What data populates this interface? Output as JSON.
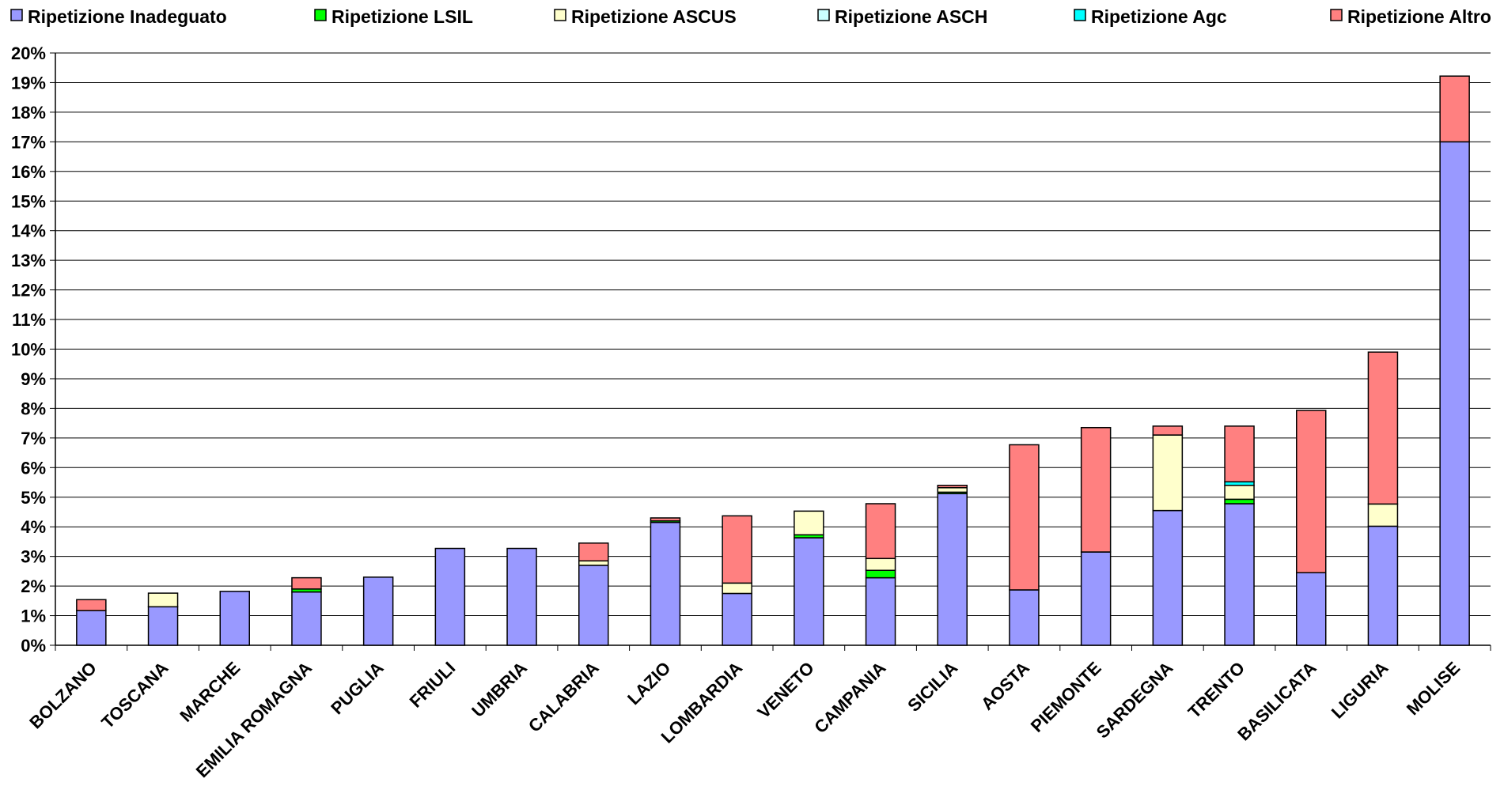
{
  "chart_data": {
    "type": "bar",
    "stacked": true,
    "title": "",
    "xlabel": "",
    "ylabel": "",
    "ylim": [
      0,
      20
    ],
    "y_tick_labels": [
      "0%",
      "1%",
      "2%",
      "3%",
      "4%",
      "5%",
      "6%",
      "7%",
      "8%",
      "9%",
      "10%",
      "11%",
      "12%",
      "13%",
      "14%",
      "15%",
      "16%",
      "17%",
      "18%",
      "19%",
      "20%"
    ],
    "grid": true,
    "legend_position": "top",
    "categories": [
      "BOLZANO",
      "TOSCANA",
      "MARCHE",
      "EMILIA ROMAGNA",
      "PUGLIA",
      "FRIULI",
      "UMBRIA",
      "CALABRIA",
      "LAZIO",
      "LOMBARDIA",
      "VENETO",
      "CAMPANIA",
      "SICILIA",
      "AOSTA",
      "PIEMONTE",
      "SARDEGNA",
      "TRENTO",
      "BASILICATA",
      "LIGURIA",
      "MOLISE"
    ],
    "series": [
      {
        "name": "Ripetizione Inadeguato",
        "color": "#9999ff",
        "values": [
          1.17,
          1.3,
          1.82,
          1.8,
          2.3,
          3.27,
          3.27,
          2.7,
          4.15,
          1.75,
          3.63,
          2.28,
          5.12,
          1.87,
          3.15,
          4.55,
          4.78,
          2.45,
          4.02,
          17.0
        ]
      },
      {
        "name": "Ripetizione LSIL",
        "color": "#00ff00",
        "values": [
          0,
          0,
          0,
          0.1,
          0,
          0,
          0,
          0,
          0.05,
          0,
          0.1,
          0.25,
          0.05,
          0,
          0,
          0,
          0.15,
          0,
          0,
          0
        ]
      },
      {
        "name": "Ripetizione ASCUS",
        "color": "#ffffcc",
        "values": [
          0,
          0.46,
          0,
          0,
          0,
          0,
          0,
          0.15,
          0,
          0.35,
          0.8,
          0.4,
          0.15,
          0,
          0,
          2.55,
          0.47,
          0,
          0.75,
          0
        ]
      },
      {
        "name": "Ripetizione ASCH",
        "color": "#ccffff",
        "values": [
          0,
          0,
          0,
          0,
          0,
          0,
          0,
          0,
          0,
          0,
          0,
          0,
          0,
          0,
          0,
          0,
          0,
          0,
          0,
          0
        ]
      },
      {
        "name": "Ripetizione Agc",
        "color": "#00ffff",
        "values": [
          0,
          0,
          0,
          0,
          0,
          0,
          0,
          0,
          0,
          0,
          0,
          0,
          0,
          0,
          0,
          0,
          0.12,
          0,
          0,
          0
        ]
      },
      {
        "name": "Ripetizione Altro",
        "color": "#ff8080",
        "values": [
          0.37,
          0,
          0,
          0.38,
          0,
          0,
          0,
          0.6,
          0.1,
          2.27,
          0,
          1.85,
          0.08,
          4.9,
          4.2,
          0.3,
          1.88,
          5.48,
          5.13,
          2.22
        ]
      }
    ]
  }
}
